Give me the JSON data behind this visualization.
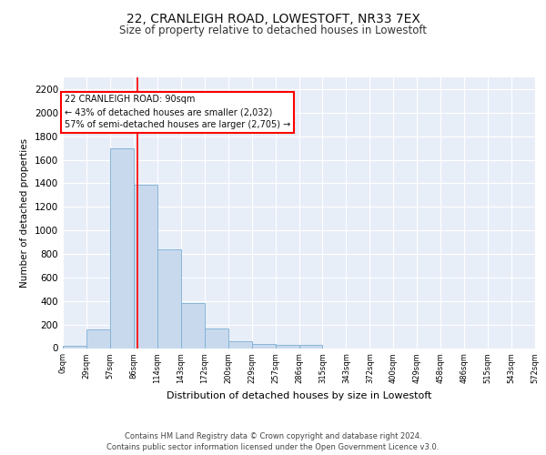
{
  "title": "22, CRANLEIGH ROAD, LOWESTOFT, NR33 7EX",
  "subtitle": "Size of property relative to detached houses in Lowestoft",
  "xlabel": "Distribution of detached houses by size in Lowestoft",
  "ylabel": "Number of detached properties",
  "bar_color": "#c9d9ed",
  "bar_edge_color": "#7aafd4",
  "background_color": "#e8eef8",
  "grid_color": "#ffffff",
  "vline_x": 90,
  "vline_color": "red",
  "bin_width": 28.5,
  "bin_starts": [
    0,
    28.5,
    57,
    85.5,
    114,
    142.5,
    171,
    199.5,
    228,
    256.5,
    285,
    313.5,
    342,
    370.5,
    399,
    427.5,
    456,
    484.5,
    513,
    541.5
  ],
  "bar_heights": [
    20,
    155,
    1700,
    1390,
    835,
    385,
    165,
    60,
    35,
    30,
    28,
    0,
    0,
    0,
    0,
    0,
    0,
    0,
    0,
    0
  ],
  "tick_labels": [
    "0sqm",
    "29sqm",
    "57sqm",
    "86sqm",
    "114sqm",
    "143sqm",
    "172sqm",
    "200sqm",
    "229sqm",
    "257sqm",
    "286sqm",
    "315sqm",
    "343sqm",
    "372sqm",
    "400sqm",
    "429sqm",
    "458sqm",
    "486sqm",
    "515sqm",
    "543sqm",
    "572sqm"
  ],
  "annotation_line1": "22 CRANLEIGH ROAD: 90sqm",
  "annotation_line2": "← 43% of detached houses are smaller (2,032)",
  "annotation_line3": "57% of semi-detached houses are larger (2,705) →",
  "annotation_box_color": "#ffffff",
  "annotation_border_color": "red",
  "footer_text": "Contains HM Land Registry data © Crown copyright and database right 2024.\nContains public sector information licensed under the Open Government Licence v3.0.",
  "ylim": [
    0,
    2300
  ],
  "yticks": [
    0,
    200,
    400,
    600,
    800,
    1000,
    1200,
    1400,
    1600,
    1800,
    2000,
    2200
  ]
}
